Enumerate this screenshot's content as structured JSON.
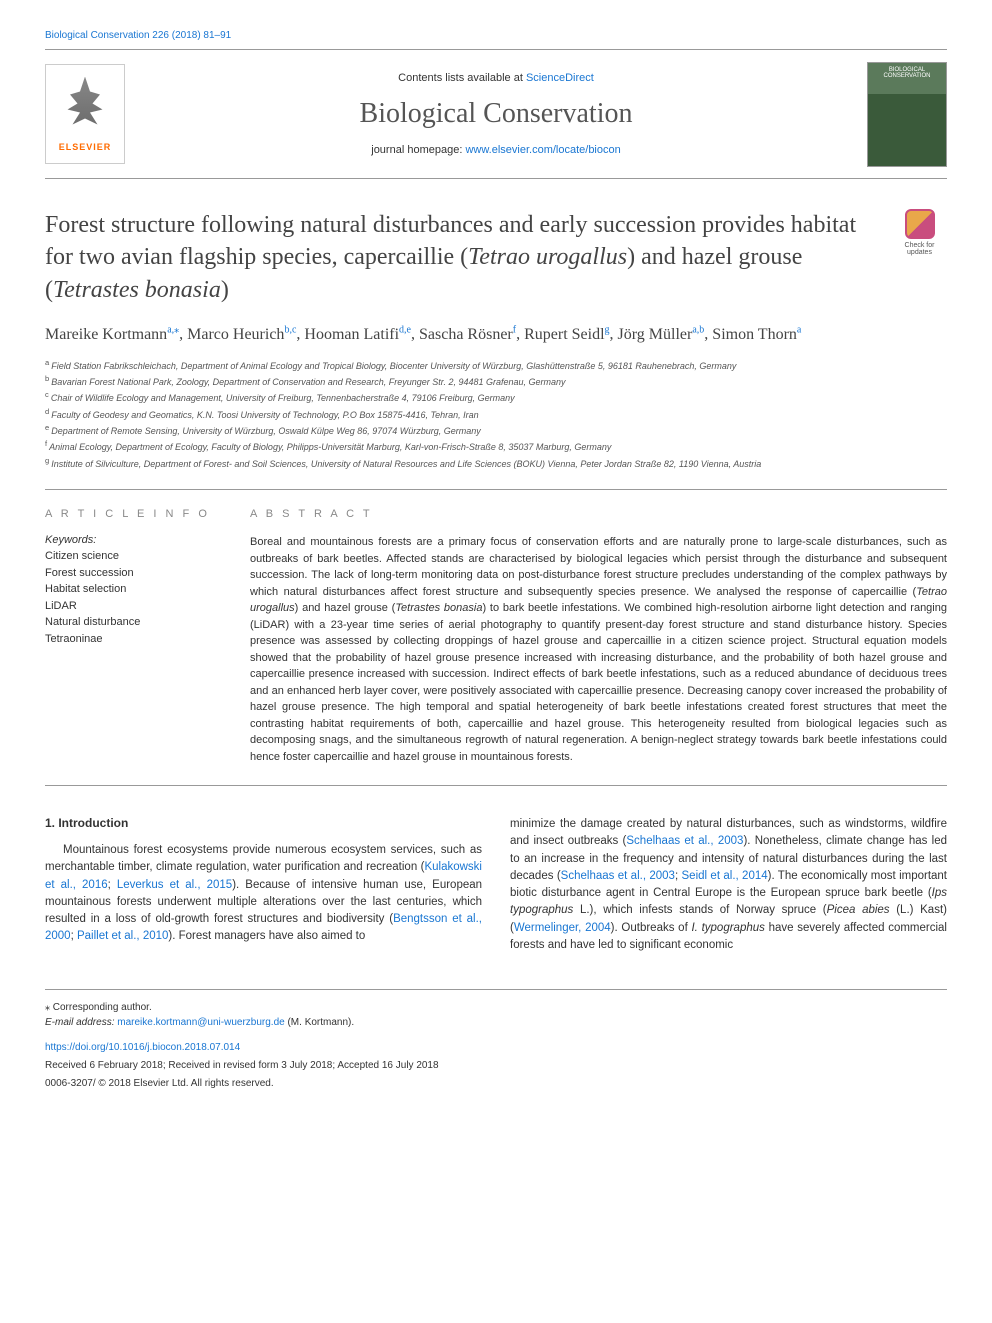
{
  "header": {
    "citation": "Biological Conservation 226 (2018) 81–91",
    "contents_prefix": "Contents lists available at ",
    "contents_link": "ScienceDirect",
    "journal_name": "Biological Conservation",
    "homepage_prefix": "journal homepage: ",
    "homepage_link": "www.elsevier.com/locate/biocon",
    "publisher_name": "ELSEVIER",
    "cover_label": "BIOLOGICAL CONSERVATION"
  },
  "check_updates_label": "Check for updates",
  "title": {
    "pre": "Forest structure following natural disturbances and early succession provides habitat for two avian flagship species, capercaillie (",
    "italic1": "Tetrao urogallus",
    "mid": ") and hazel grouse (",
    "italic2": "Tetrastes bonasia",
    "post": ")"
  },
  "authors": [
    {
      "name": "Mareike Kortmann",
      "sup": "a,⁎"
    },
    {
      "name": "Marco Heurich",
      "sup": "b,c"
    },
    {
      "name": "Hooman Latifi",
      "sup": "d,e"
    },
    {
      "name": "Sascha Rösner",
      "sup": "f"
    },
    {
      "name": "Rupert Seidl",
      "sup": "g"
    },
    {
      "name": "Jörg Müller",
      "sup": "a,b"
    },
    {
      "name": "Simon Thorn",
      "sup": "a"
    }
  ],
  "affiliations": [
    {
      "sup": "a",
      "text": "Field Station Fabrikschleichach, Department of Animal Ecology and Tropical Biology, Biocenter University of Würzburg, Glashüttenstraße 5, 96181 Rauhenebrach, Germany"
    },
    {
      "sup": "b",
      "text": "Bavarian Forest National Park, Zoology, Department of Conservation and Research, Freyunger Str. 2, 94481 Grafenau, Germany"
    },
    {
      "sup": "c",
      "text": "Chair of Wildlife Ecology and Management, University of Freiburg, Tennenbacherstraße 4, 79106 Freiburg, Germany"
    },
    {
      "sup": "d",
      "text": "Faculty of Geodesy and Geomatics, K.N. Toosi University of Technology, P.O Box 15875-4416, Tehran, Iran"
    },
    {
      "sup": "e",
      "text": "Department of Remote Sensing, University of Würzburg, Oswald Külpe Weg 86, 97074 Würzburg, Germany"
    },
    {
      "sup": "f",
      "text": "Animal Ecology, Department of Ecology, Faculty of Biology, Philipps-Universität Marburg, Karl-von-Frisch-Straße 8, 35037 Marburg, Germany"
    },
    {
      "sup": "g",
      "text": "Institute of Silviculture, Department of Forest- and Soil Sciences, University of Natural Resources and Life Sciences (BOKU) Vienna, Peter Jordan Straße 82, 1190 Vienna, Austria"
    }
  ],
  "article_info": {
    "label": "A R T I C L E  I N F O",
    "keywords_label": "Keywords:",
    "keywords": [
      "Citizen science",
      "Forest succession",
      "Habitat selection",
      "LiDAR",
      "Natural disturbance",
      "Tetraoninae"
    ]
  },
  "abstract": {
    "label": "A B S T R A C T",
    "text_parts": [
      {
        "t": "Boreal and mountainous forests are a primary focus of conservation efforts and are naturally prone to large-scale disturbances, such as outbreaks of bark beetles. Affected stands are characterised by biological legacies which persist through the disturbance and subsequent succession. The lack of long-term monitoring data on post-disturbance forest structure precludes understanding of the complex pathways by which natural disturbances affect forest structure and subsequently species presence. We analysed the response of capercaillie ("
      },
      {
        "i": "Tetrao urogallus"
      },
      {
        "t": ") and hazel grouse ("
      },
      {
        "i": "Tetrastes bonasia"
      },
      {
        "t": ") to bark beetle infestations. We combined high-resolution airborne light detection and ranging (LiDAR) with a 23-year time series of aerial photography to quantify present-day forest structure and stand disturbance history. Species presence was assessed by collecting droppings of hazel grouse and capercaillie in a citizen science project. Structural equation models showed that the probability of hazel grouse presence increased with increasing disturbance, and the probability of both hazel grouse and capercaillie presence increased with succession. Indirect effects of bark beetle infestations, such as a reduced abundance of deciduous trees and an enhanced herb layer cover, were positively associated with capercaillie presence. Decreasing canopy cover increased the probability of hazel grouse presence. The high temporal and spatial heterogeneity of bark beetle infestations created forest structures that meet the contrasting habitat requirements of both, capercaillie and hazel grouse. This heterogeneity resulted from biological legacies such as decomposing snags, and the simultaneous regrowth of natural regeneration. A benign-neglect strategy towards bark beetle infestations could hence foster capercaillie and hazel grouse in mountainous forests."
      }
    ]
  },
  "intro": {
    "heading": "1. Introduction",
    "col1": [
      {
        "t": "Mountainous forest ecosystems provide numerous ecosystem services, such as merchantable timber, climate regulation, water purification and recreation ("
      },
      {
        "a": "Kulakowski et al., 2016"
      },
      {
        "t": "; "
      },
      {
        "a": "Leverkus et al., 2015"
      },
      {
        "t": "). Because of intensive human use, European mountainous forests underwent multiple alterations over the last centuries, which resulted in a loss of old-growth forest structures and biodiversity ("
      },
      {
        "a": "Bengtsson et al., 2000"
      },
      {
        "t": "; "
      },
      {
        "a": "Paillet et al., 2010"
      },
      {
        "t": "). Forest managers have also aimed to "
      }
    ],
    "col2": [
      {
        "t": "minimize the damage created by natural disturbances, such as windstorms, wildfire and insect outbreaks ("
      },
      {
        "a": "Schelhaas et al., 2003"
      },
      {
        "t": "). Nonetheless, climate change has led to an increase in the frequency and intensity of natural disturbances during the last decades ("
      },
      {
        "a": "Schelhaas et al., 2003"
      },
      {
        "t": "; "
      },
      {
        "a": "Seidl et al., 2014"
      },
      {
        "t": "). The economically most important biotic disturbance agent in Central Europe is the European spruce bark beetle ("
      },
      {
        "i": "Ips typographus"
      },
      {
        "t": " L.), which infests stands of Norway spruce ("
      },
      {
        "i": "Picea abies"
      },
      {
        "t": " (L.) Kast) ("
      },
      {
        "a": "Wermelinger, 2004"
      },
      {
        "t": "). Outbreaks of "
      },
      {
        "i": "I. typographus"
      },
      {
        "t": " have severely affected commercial forests and have led to significant economic"
      }
    ]
  },
  "footer": {
    "corresponding": "⁎ Corresponding author.",
    "email_label": "E-mail address: ",
    "email": "mareike.kortmann@uni-wuerzburg.de",
    "email_name": " (M. Kortmann).",
    "doi": "https://doi.org/10.1016/j.biocon.2018.07.014",
    "received": "Received 6 February 2018; Received in revised form 3 July 2018; Accepted 16 July 2018",
    "issn": "0006-3207/ © 2018 Elsevier Ltd. All rights reserved."
  }
}
